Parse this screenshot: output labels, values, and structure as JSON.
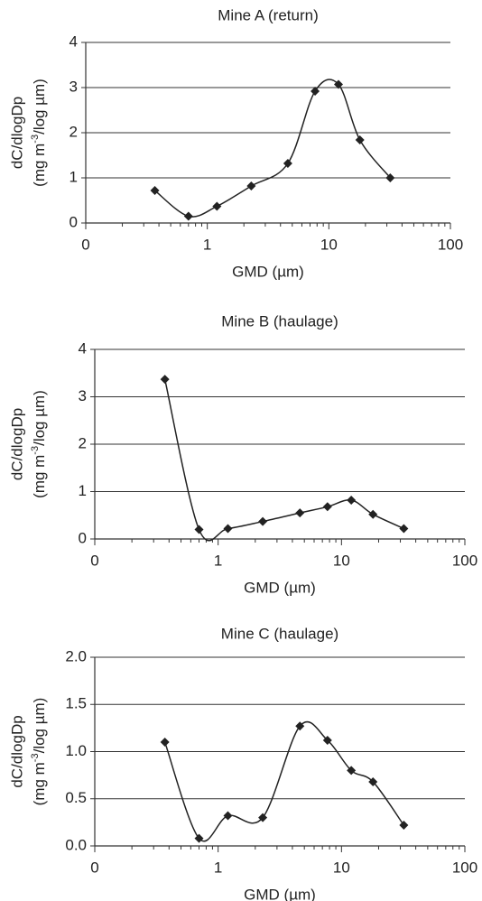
{
  "chart_data": [
    {
      "type": "line",
      "title": "Mine A (return)",
      "x_label": "GMD (µm)",
      "y_label": "dC/dlogDp",
      "y_label_units": [
        "(mg m",
        "-3",
        "/log µm)"
      ],
      "x": [
        0.37,
        0.7,
        1.2,
        2.3,
        4.6,
        7.7,
        12,
        18,
        32
      ],
      "series": [
        {
          "color": "#222222",
          "values": [
            0.72,
            0.15,
            0.37,
            0.82,
            1.32,
            2.92,
            3.07,
            1.84,
            1.0
          ]
        }
      ],
      "xlim": [
        0.1,
        100
      ],
      "xticks": [
        {
          "value": 0.1,
          "label": "0"
        },
        1,
        10,
        100
      ],
      "x_log": true,
      "ylim": [
        0,
        4
      ],
      "yticks": [
        0,
        1,
        2,
        3,
        4
      ],
      "grid": true,
      "smooth": true
    },
    {
      "type": "line",
      "title": "Mine B (haulage)",
      "x_label": "GMD (µm)",
      "y_label": "dC/dlogDp",
      "y_label_units": [
        "(mg m",
        "-3",
        "/log µm)"
      ],
      "x": [
        0.37,
        0.7,
        1.2,
        2.3,
        4.6,
        7.7,
        12,
        18,
        32
      ],
      "series": [
        {
          "color": "#222222",
          "values": [
            3.37,
            0.2,
            0.22,
            0.37,
            0.55,
            0.68,
            0.82,
            0.52,
            0.22
          ]
        }
      ],
      "xlim": [
        0.1,
        100
      ],
      "xticks": [
        {
          "value": 0.1,
          "label": "0"
        },
        1,
        10,
        100
      ],
      "x_log": true,
      "ylim": [
        0,
        4
      ],
      "yticks": [
        0,
        1,
        2,
        3,
        4
      ],
      "grid": true,
      "smooth": true
    },
    {
      "type": "line",
      "title": "Mine C (haulage)",
      "x_label": "GMD (µm)",
      "y_label": "dC/dlogDp",
      "y_label_units": [
        "(mg m",
        "-3",
        "/log µm)"
      ],
      "x": [
        0.37,
        0.7,
        1.2,
        2.3,
        4.6,
        7.7,
        12,
        18,
        32
      ],
      "series": [
        {
          "color": "#222222",
          "values": [
            1.1,
            0.08,
            0.32,
            0.3,
            1.27,
            1.12,
            0.8,
            0.68,
            0.22
          ]
        }
      ],
      "xlim": [
        0.1,
        100
      ],
      "xticks": [
        {
          "value": 0.1,
          "label": "0"
        },
        1,
        10,
        100
      ],
      "x_log": true,
      "ylim": [
        0,
        2
      ],
      "yticks": [
        {
          "value": 0,
          "label": "0.0"
        },
        {
          "value": 0.5,
          "label": "0.5"
        },
        {
          "value": 1,
          "label": "1.0"
        },
        {
          "value": 1.5,
          "label": "1.5"
        },
        {
          "value": 2,
          "label": "2.0"
        }
      ],
      "grid": true,
      "smooth": true
    }
  ]
}
